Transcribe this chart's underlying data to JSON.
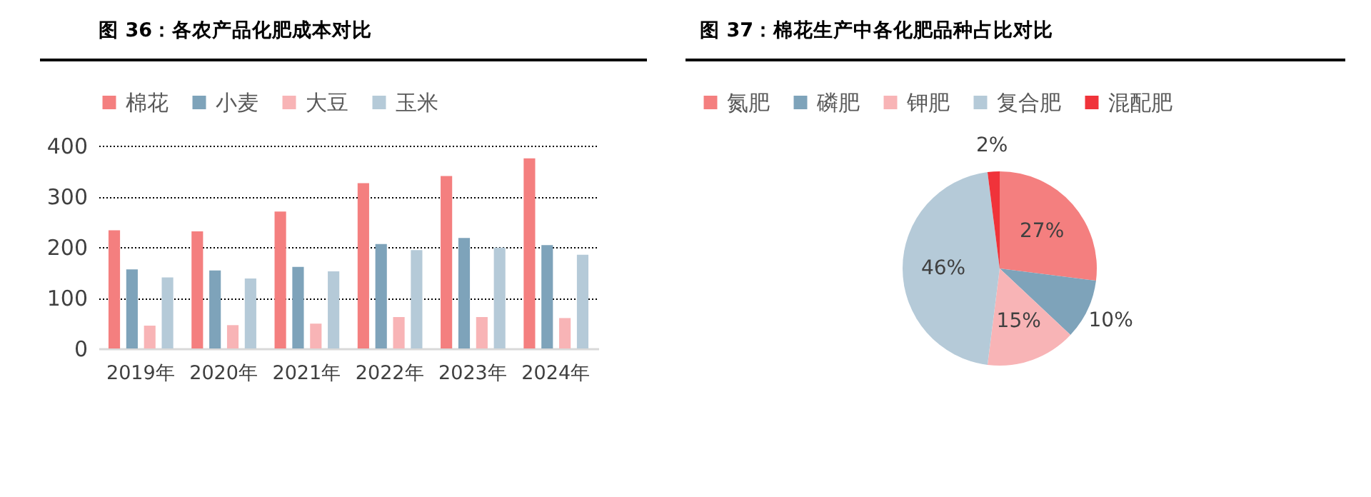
{
  "chart_data": [
    {
      "type": "bar",
      "title": "图 36：各农产品化肥成本对比",
      "categories": [
        "2019年",
        "2020年",
        "2021年",
        "2022年",
        "2023年",
        "2024年"
      ],
      "series": [
        {
          "name": "棉花",
          "color": "#f47f7f",
          "values": [
            233,
            231,
            270,
            326,
            340,
            375
          ]
        },
        {
          "name": "小麦",
          "color": "#7ea3ba",
          "values": [
            156,
            154,
            161,
            206,
            218,
            204
          ]
        },
        {
          "name": "大豆",
          "color": "#f8b4b6",
          "values": [
            45,
            46,
            49,
            62,
            62,
            60
          ]
        },
        {
          "name": "玉米",
          "color": "#b5cad8",
          "values": [
            140,
            138,
            152,
            194,
            199,
            185
          ]
        }
      ],
      "ylim": [
        0,
        400
      ],
      "yticks": [
        0,
        100,
        200,
        300,
        400
      ],
      "grid": "y",
      "legend": "top"
    },
    {
      "type": "pie",
      "title": "图 37：棉花生产中各化肥品种占比对比",
      "categories": [
        "氮肥",
        "磷肥",
        "钾肥",
        "复合肥",
        "混配肥"
      ],
      "values": [
        27,
        10,
        15,
        46,
        2
      ],
      "colors": [
        "#f47f7f",
        "#7ea3ba",
        "#f8b4b6",
        "#b5cad8",
        "#f0333a"
      ],
      "value_labels": [
        "27%",
        "10%",
        "15%",
        "46%",
        "2%"
      ],
      "legend": "top"
    }
  ]
}
